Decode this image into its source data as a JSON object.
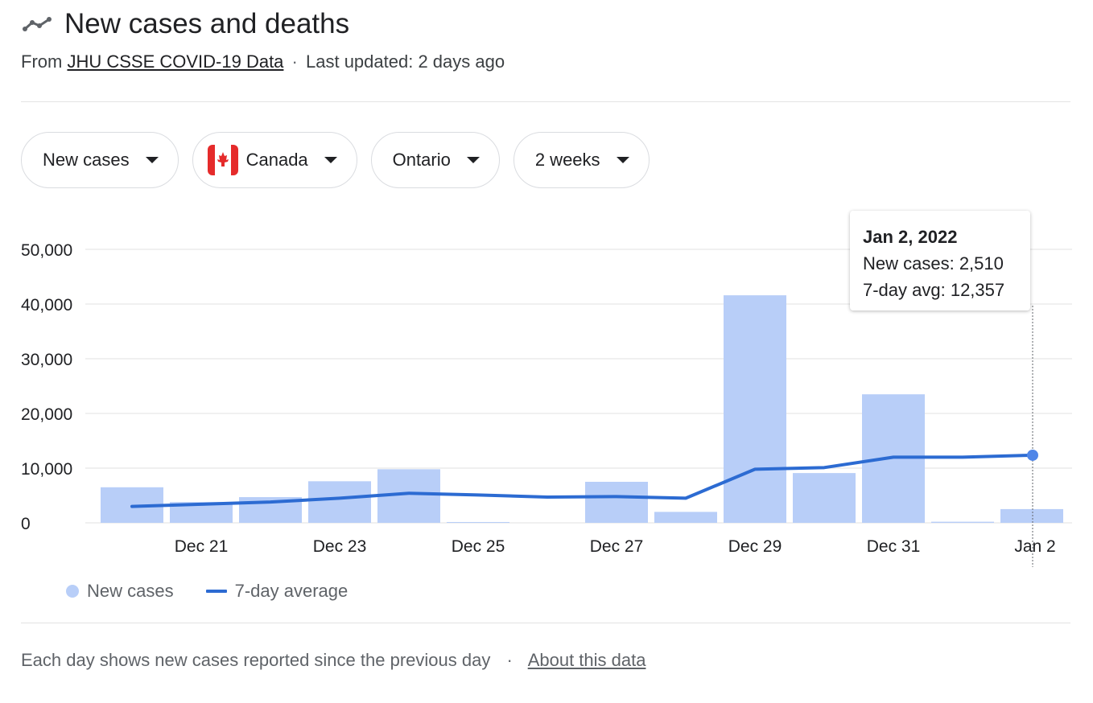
{
  "header": {
    "title": "New cases and deaths",
    "source_prefix": "From",
    "source_link": "JHU CSSE COVID-19 Data",
    "separator": "·",
    "updated": "Last updated: 2 days ago"
  },
  "filters": {
    "metric": "New cases",
    "country": "Canada",
    "region": "Ontario",
    "range": "2 weeks"
  },
  "tooltip": {
    "date": "Jan 2, 2022",
    "new_cases": "New cases: 2,510",
    "avg": "7-day avg: 12,357"
  },
  "legend": {
    "bars": "New cases",
    "line": "7-day average"
  },
  "footer": {
    "note": "Each day shows new cases reported since the previous day",
    "separator": "·",
    "about_link": "About this data"
  },
  "colors": {
    "bar": "#b8cef8",
    "line": "#2c6bd2",
    "point": "#4f86e8",
    "grid": "#ececec"
  },
  "chart_data": {
    "type": "bar",
    "title": "New cases and deaths",
    "xlabel": "",
    "ylabel": "",
    "ylim": [
      0,
      50000
    ],
    "yticks": [
      "0",
      "10,000",
      "20,000",
      "30,000",
      "40,000",
      "50,000"
    ],
    "ytick_values": [
      0,
      10000,
      20000,
      30000,
      40000,
      50000
    ],
    "categories": [
      "Dec 20",
      "Dec 21",
      "Dec 22",
      "Dec 23",
      "Dec 24",
      "Dec 25",
      "Dec 26",
      "Dec 27",
      "Dec 28",
      "Dec 29",
      "Dec 30",
      "Dec 31",
      "Jan 1",
      "Jan 2"
    ],
    "xtick_labels": [
      "",
      "Dec 21",
      "",
      "Dec 23",
      "",
      "Dec 25",
      "",
      "Dec 27",
      "",
      "Dec 29",
      "",
      "Dec 31",
      "",
      "Jan 2"
    ],
    "series": [
      {
        "name": "New cases",
        "kind": "bar",
        "values": [
          6500,
          3800,
          4700,
          7600,
          9800,
          150,
          0,
          7500,
          2000,
          41600,
          9100,
          23500,
          200,
          2510
        ]
      },
      {
        "name": "7-day average",
        "kind": "line",
        "values": [
          3000,
          3400,
          3800,
          4500,
          5400,
          5100,
          4700,
          4800,
          4500,
          9800,
          10100,
          12000,
          12000,
          12357
        ]
      }
    ],
    "highlight_index": 13,
    "legend_position": "bottom-left"
  }
}
